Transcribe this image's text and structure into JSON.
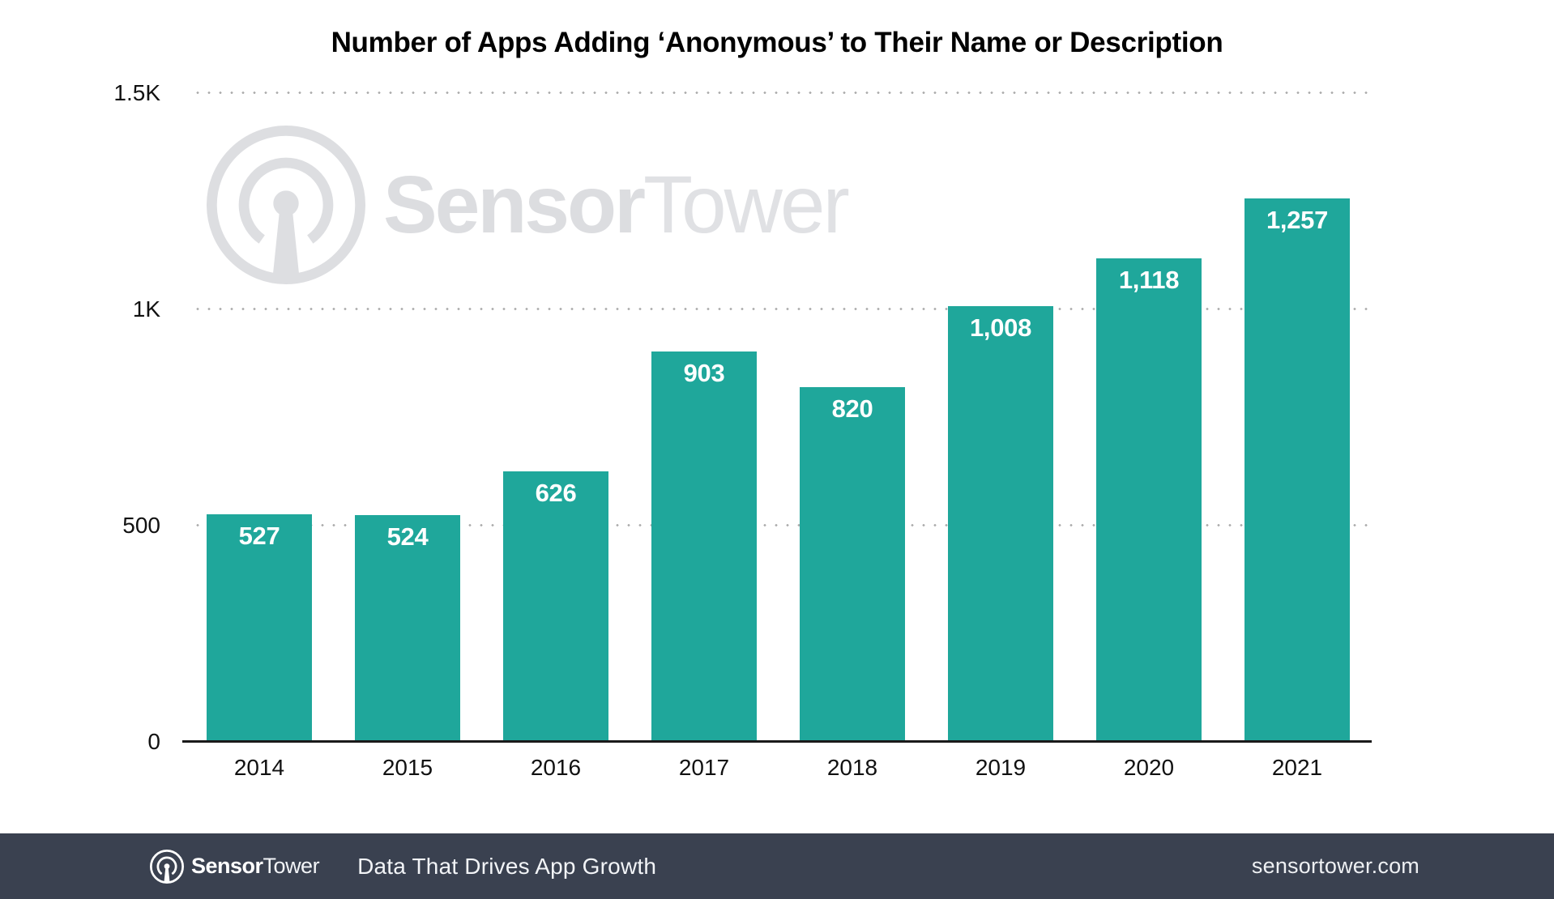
{
  "title": "Number of Apps Adding ‘Anonymous’ to Their Name or Description",
  "chart_data": {
    "type": "bar",
    "title": "Number of Apps Adding ‘Anonymous’ to Their Name or Description",
    "categories": [
      "2014",
      "2015",
      "2016",
      "2017",
      "2018",
      "2019",
      "2020",
      "2021"
    ],
    "values": [
      527,
      524,
      626,
      903,
      820,
      1008,
      1118,
      1257
    ],
    "value_labels": [
      "527",
      "524",
      "626",
      "903",
      "820",
      "1,008",
      "1,118",
      "1,257"
    ],
    "xlabel": "",
    "ylabel": "",
    "ylim": [
      0,
      1500
    ],
    "yticks": [
      {
        "value": 1500,
        "label": "1.5K"
      },
      {
        "value": 1000,
        "label": "1K"
      },
      {
        "value": 500,
        "label": "500"
      },
      {
        "value": 0,
        "label": "0"
      }
    ],
    "grid": "horizontal-dotted",
    "legend": "none",
    "bar_color": "#1FA79B",
    "value_label_color": "#FFFFFF"
  },
  "watermark": {
    "brand_bold": "Sensor",
    "brand_light": "Tower",
    "color": "#DDDEE1"
  },
  "footer": {
    "brand_bold": "Sensor",
    "brand_light": "Tower",
    "tagline": "Data That Drives App Growth",
    "website": "sensortower.com",
    "bg_color": "#3A4150"
  },
  "colors": {
    "background": "#FFFFFF",
    "bar": "#1FA79B",
    "grid_dot": "#ACACAC",
    "axis": "#1A1A1A",
    "title_text": "#000000",
    "tick_text": "#111111",
    "footer_bg": "#3A4150",
    "footer_text": "#F2F4F7"
  }
}
